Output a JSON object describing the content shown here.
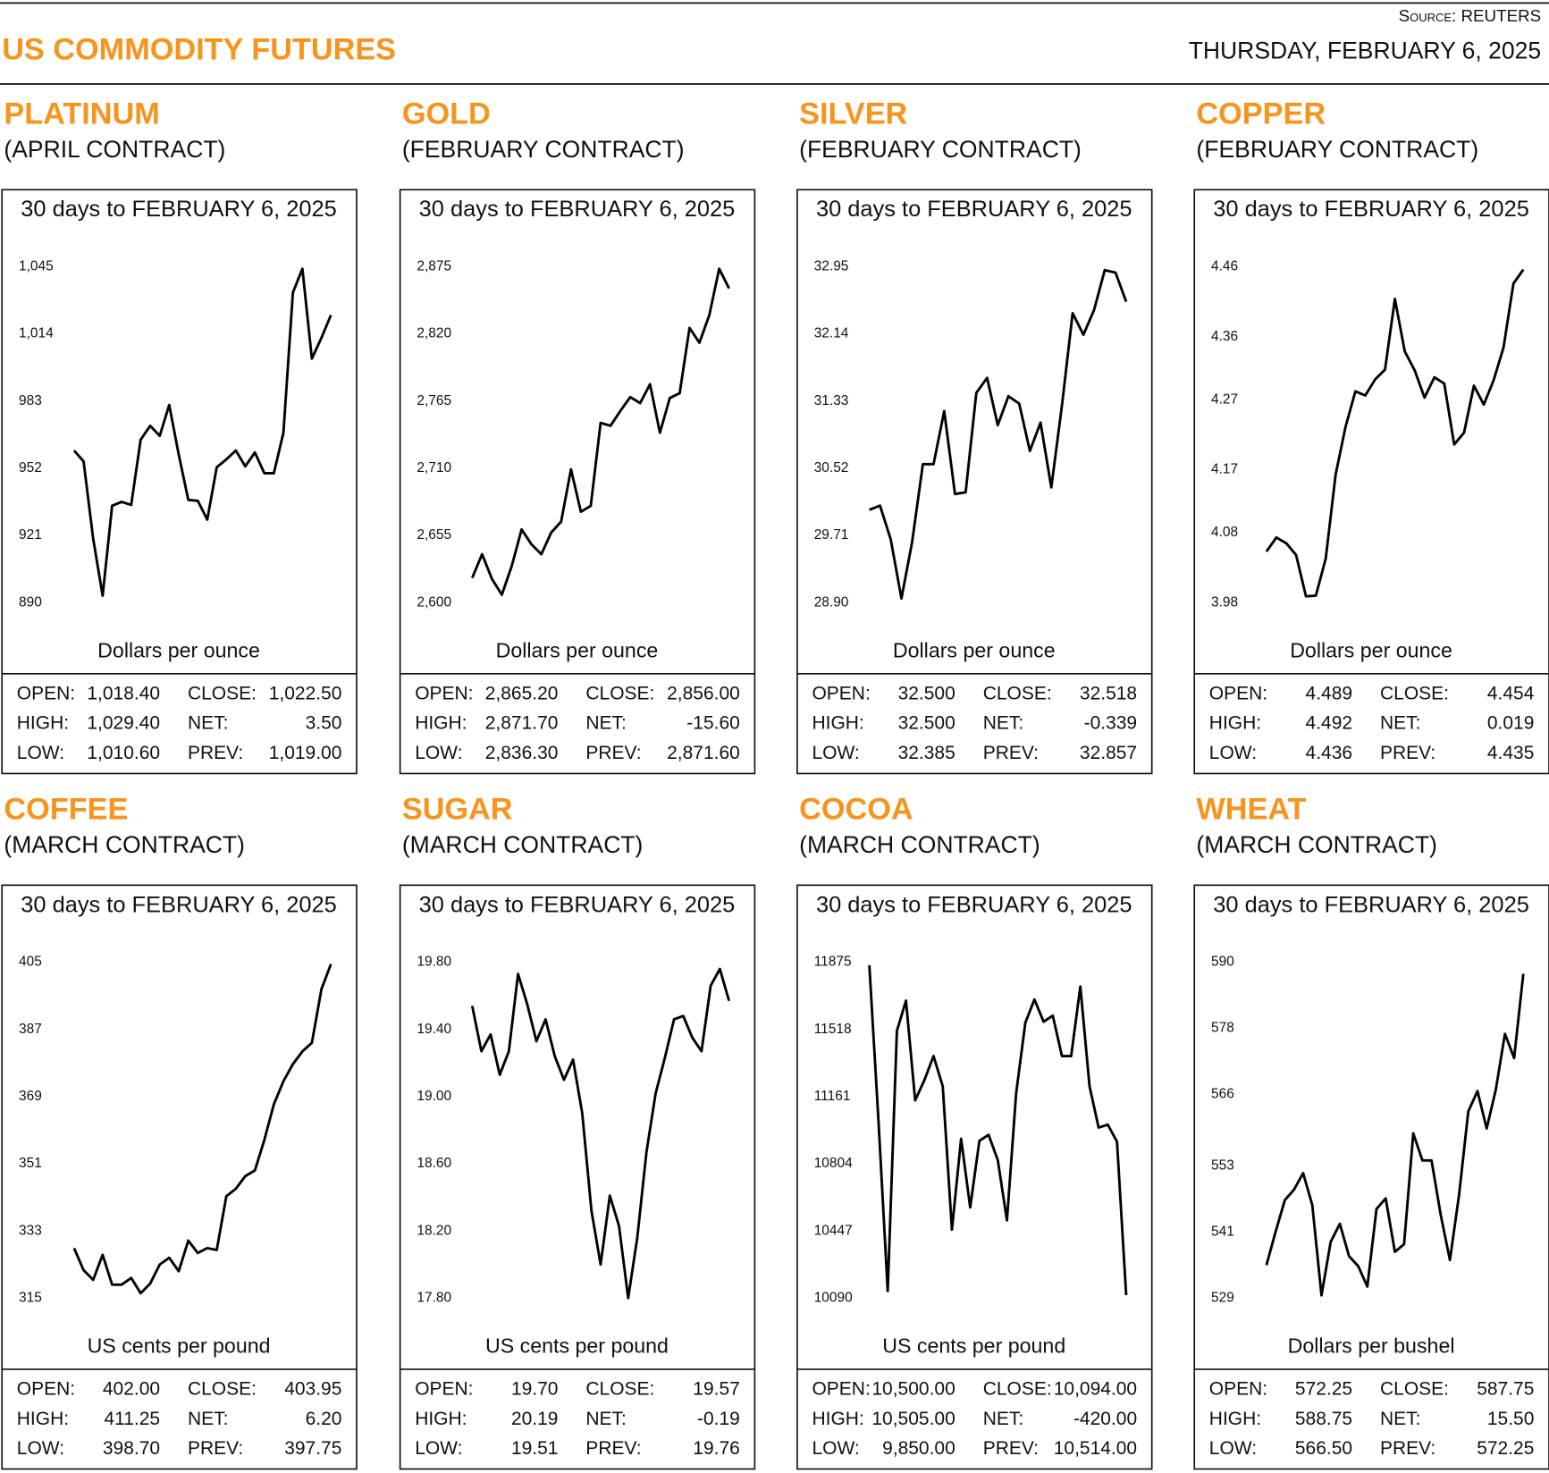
{
  "header": {
    "source": "Source: REUTERS",
    "title": "US COMMODITY FUTURES",
    "date": "THURSDAY, FEBRUARY 6, 2025"
  },
  "chart_data": [
    {
      "type": "line",
      "title": "PLATINUM",
      "subtitle": "(APRIL CONTRACT)",
      "period": "30 days to FEBRUARY 6, 2025",
      "y_label": "Dollars per ounce",
      "color": "#000000",
      "ylim": [
        890,
        1045
      ],
      "yticks": [
        {
          "value": 1045,
          "label": "1,045"
        },
        {
          "value": 1014,
          "label": "1,014"
        },
        983,
        952,
        921,
        890
      ],
      "values": [
        960.2,
        955.2,
        919.6,
        893.2,
        934.7,
        936.5,
        935.1,
        965.2,
        971.6,
        967.0,
        981.2,
        958.4,
        937.4,
        937.0,
        928.3,
        952.5,
        956.1,
        960.2,
        952.9,
        959.3,
        949.7,
        949.7,
        968.4,
        1033.1,
        1044.1,
        1002.6,
        1012.2,
        1022.7
      ],
      "stats": [
        [
          "OPEN:",
          "1,018.40",
          "CLOSE:",
          "1,022.50"
        ],
        [
          "HIGH:",
          "1,029.40",
          "NET:",
          "3.50"
        ],
        [
          "LOW:",
          "1,010.60",
          "PREV:",
          "1,019.00"
        ]
      ]
    },
    {
      "type": "line",
      "title": "GOLD",
      "subtitle": "(FEBRUARY CONTRACT)",
      "period": "30 days to FEBRUARY 6, 2025",
      "y_label": "Dollars per ounce",
      "color": "#000000",
      "ylim": [
        2600,
        2875
      ],
      "yticks": [
        {
          "value": 2875,
          "label": "2,875"
        },
        {
          "value": 2820,
          "label": "2,820"
        },
        {
          "value": 2765,
          "label": "2,765"
        },
        {
          "value": 2710,
          "label": "2,710"
        },
        {
          "value": 2655,
          "label": "2,655"
        },
        {
          "value": 2600,
          "label": "2,600"
        }
      ],
      "values": [
        2620.2,
        2639.6,
        2619.4,
        2606.5,
        2629.9,
        2659.9,
        2647.7,
        2639.6,
        2657.4,
        2666.3,
        2709.2,
        2674.4,
        2679.3,
        2747.2,
        2744.8,
        2757.0,
        2768.3,
        2763.4,
        2778.8,
        2739.1,
        2767.5,
        2771.5,
        2824.9,
        2812.8,
        2835.4,
        2873.4,
        2857.3
      ],
      "stats": [
        [
          "OPEN:",
          "2,865.20",
          "CLOSE:",
          "2,856.00"
        ],
        [
          "HIGH:",
          "2,871.70",
          "NET:",
          "-15.60"
        ],
        [
          "LOW:",
          "2,836.30",
          "PREV:",
          "2,871.60"
        ]
      ]
    },
    {
      "type": "line",
      "title": "SILVER",
      "subtitle": "(FEBRUARY CONTRACT)",
      "period": "30 days to FEBRUARY 6, 2025",
      "y_label": "Dollars per ounce",
      "color": "#000000",
      "ylim": [
        28.9,
        32.95
      ],
      "yticks": [
        32.95,
        32.14,
        31.33,
        30.52,
        29.71,
        {
          "value": 28.9,
          "label": "28.90"
        }
      ],
      "values": [
        30.02,
        30.07,
        29.66,
        28.95,
        29.63,
        30.57,
        30.57,
        31.21,
        30.21,
        30.23,
        31.43,
        31.61,
        31.04,
        31.39,
        31.3,
        30.73,
        31.07,
        30.29,
        31.28,
        32.39,
        32.13,
        32.43,
        32.91,
        32.88,
        32.53
      ],
      "stats": [
        [
          "OPEN:",
          "32.500",
          "CLOSE:",
          "32.518"
        ],
        [
          "HIGH:",
          "32.500",
          "NET:",
          "-0.339"
        ],
        [
          "LOW:",
          "32.385",
          "PREV:",
          "32.857"
        ]
      ]
    },
    {
      "type": "line",
      "title": "COPPER",
      "subtitle": "(FEBRUARY CONTRACT)",
      "period": "30 days to FEBRUARY 6, 2025",
      "y_label": "Dollars per ounce",
      "color": "#000000",
      "ylim": [
        3.98,
        4.46
      ],
      "yticks": [
        4.46,
        4.36,
        4.27,
        4.17,
        4.08,
        3.98
      ],
      "values": [
        4.053,
        4.073,
        4.065,
        4.048,
        3.989,
        3.99,
        4.043,
        4.163,
        4.231,
        4.282,
        4.276,
        4.299,
        4.313,
        4.414,
        4.339,
        4.312,
        4.273,
        4.302,
        4.293,
        4.206,
        4.223,
        4.29,
        4.263,
        4.298,
        4.345,
        4.436,
        4.456
      ],
      "stats": [
        [
          "OPEN:",
          "4.489",
          "CLOSE:",
          "4.454"
        ],
        [
          "HIGH:",
          "4.492",
          "NET:",
          "0.019"
        ],
        [
          "LOW:",
          "4.436",
          "PREV:",
          "4.435"
        ]
      ]
    },
    {
      "type": "line",
      "title": "COFFEE",
      "subtitle": "(MARCH CONTRACT)",
      "period": "30 days to FEBRUARY 6, 2025",
      "y_label": "US cents per pound",
      "color": "#000000",
      "ylim": [
        315,
        405
      ],
      "yticks": [
        405,
        387,
        369,
        351,
        333,
        315
      ],
      "values": [
        328.4,
        322.5,
        319.9,
        326.6,
        318.6,
        318.6,
        320.4,
        316.3,
        318.9,
        324.0,
        325.8,
        322.2,
        330.4,
        327.1,
        328.4,
        327.9,
        342.3,
        344.3,
        347.7,
        349.2,
        357.4,
        366.9,
        373.1,
        377.7,
        381.1,
        383.4,
        397.8,
        404.5
      ],
      "stats": [
        [
          "OPEN:",
          "402.00",
          "CLOSE:",
          "403.95"
        ],
        [
          "HIGH:",
          "411.25",
          "NET:",
          "6.20"
        ],
        [
          "LOW:",
          "398.70",
          "PREV:",
          "397.75"
        ]
      ]
    },
    {
      "type": "line",
      "title": "SUGAR",
      "subtitle": "(MARCH CONTRACT)",
      "period": "30 days to FEBRUARY 6, 2025",
      "y_label": "US cents per pound",
      "color": "#000000",
      "ylim": [
        17.8,
        19.8
      ],
      "yticks": [
        {
          "value": 19.8,
          "label": "19.80"
        },
        {
          "value": 19.4,
          "label": "19.40"
        },
        {
          "value": 19,
          "label": "19.00"
        },
        {
          "value": 18.6,
          "label": "18.60"
        },
        {
          "value": 18.2,
          "label": "18.20"
        },
        {
          "value": 17.8,
          "label": "17.80"
        }
      ],
      "values": [
        19.54,
        19.27,
        19.37,
        19.13,
        19.27,
        19.73,
        19.55,
        19.33,
        19.46,
        19.24,
        19.1,
        19.22,
        18.9,
        18.32,
        18.0,
        18.41,
        18.23,
        17.8,
        18.16,
        18.67,
        19.02,
        19.23,
        19.46,
        19.48,
        19.35,
        19.27,
        19.66,
        19.76,
        19.57
      ],
      "stats": [
        [
          "OPEN:",
          "19.70",
          "CLOSE:",
          "19.57"
        ],
        [
          "HIGH:",
          "20.19",
          "NET:",
          "-0.19"
        ],
        [
          "LOW:",
          "19.51",
          "PREV:",
          "19.76"
        ]
      ]
    },
    {
      "type": "line",
      "title": "COCOA",
      "subtitle": "(MARCH CONTRACT)",
      "period": "30 days to FEBRUARY 6, 2025",
      "y_label": "US cents per pound",
      "color": "#000000",
      "ylim": [
        10090,
        11875
      ],
      "yticks": [
        11875,
        11518,
        11161,
        10804,
        10447,
        10090
      ],
      "values": [
        11859,
        11028,
        10128,
        11510,
        11671,
        11141,
        11248,
        11376,
        11216,
        10454,
        10937,
        10572,
        10926,
        10958,
        10824,
        10503,
        11178,
        11553,
        11677,
        11559,
        11591,
        11376,
        11376,
        11746,
        11216,
        10996,
        11012,
        10921,
        10106
      ],
      "stats": [
        [
          "OPEN:",
          "10,500.00",
          "CLOSE:",
          "10,094.00"
        ],
        [
          "HIGH:",
          "10,505.00",
          "NET:",
          "-420.00"
        ],
        [
          "LOW:",
          "9,850.00",
          "PREV:",
          "10,514.00"
        ]
      ]
    },
    {
      "type": "line",
      "title": "WHEAT",
      "subtitle": "(MARCH CONTRACT)",
      "period": "30 days to FEBRUARY 6, 2025",
      "y_label": "Dollars per bushel",
      "color": "#000000",
      "ylim": [
        529,
        590
      ],
      "yticks": [
        590,
        578,
        566,
        553,
        541,
        529
      ],
      "values": [
        535.0,
        541.1,
        546.8,
        548.7,
        551.7,
        545.9,
        529.5,
        539.2,
        542.5,
        536.6,
        534.8,
        531.1,
        545.2,
        547.1,
        537.4,
        538.8,
        558.9,
        554.0,
        554.0,
        544.1,
        535.9,
        547.8,
        562.9,
        566.6,
        559.8,
        566.8,
        577.0,
        572.6,
        587.9
      ],
      "stats": [
        [
          "OPEN:",
          "572.25",
          "CLOSE:",
          "587.75"
        ],
        [
          "HIGH:",
          "588.75",
          "NET:",
          "15.50"
        ],
        [
          "LOW:",
          "566.50",
          "PREV:",
          "572.25"
        ]
      ]
    }
  ]
}
